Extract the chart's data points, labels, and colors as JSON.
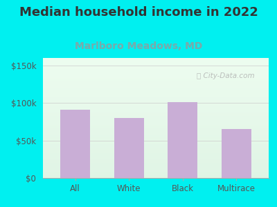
{
  "title": "Median household income in 2022",
  "subtitle": "Marlboro Meadows, MD",
  "categories": [
    "All",
    "White",
    "Black",
    "Multirace"
  ],
  "values": [
    91000,
    80000,
    101000,
    65000
  ],
  "bar_color": "#c9aed6",
  "background_outer": "#00f0f0",
  "title_color": "#333333",
  "subtitle_color": "#7aaaaa",
  "title_fontsize": 13,
  "subtitle_fontsize": 10,
  "ylabel_ticks": [
    0,
    50000,
    100000,
    150000
  ],
  "ylabel_labels": [
    "$0",
    "$50k",
    "$100k",
    "$150k"
  ],
  "ylim": [
    0,
    160000
  ],
  "watermark": "City-Data.com",
  "tick_color": "#555555",
  "grid_color": "#cccccc"
}
